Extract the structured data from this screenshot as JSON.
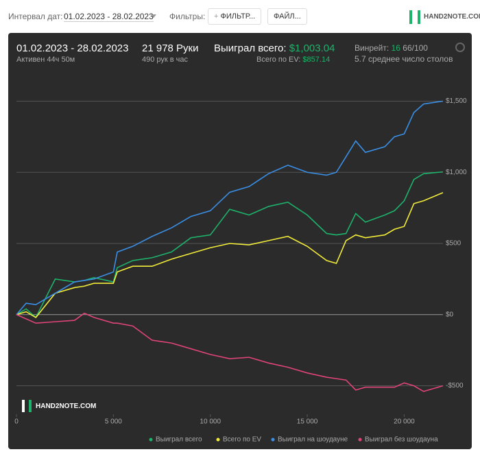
{
  "toolbar": {
    "date_label": "Интервал дат:",
    "date_range": "01.02.2023 - 28.02.2023",
    "filters_label": "Фильтры:",
    "filter_button": "ФИЛЬТР...",
    "file_button": "ФАЙЛ...",
    "logo": "HAND2NOTE.COM"
  },
  "stats": {
    "period": "01.02.2023 - 28.02.2023",
    "active": "Активен 44ч 50м",
    "hands": "21 978 Руки",
    "hands_per_hour": "490 рук в час",
    "won_label": "Выиграл всего:",
    "won_value": "$1,003.04",
    "ev_label": "Всего по EV:",
    "ev_value": "$857.14",
    "winrate_label": "Винрейт:",
    "winrate_value": "16",
    "winrate_unit": "66/100",
    "tables": "5.7 среднее число столов"
  },
  "watermark": "HAND2NOTE.COM",
  "chart_data": {
    "type": "line",
    "x": [
      0,
      500,
      1000,
      2000,
      3000,
      3500,
      4000,
      5000,
      5200,
      6000,
      7000,
      8000,
      9000,
      10000,
      11000,
      12000,
      13000,
      14000,
      15000,
      16000,
      16500,
      17000,
      17500,
      18000,
      19000,
      19500,
      20000,
      20500,
      21000,
      22000
    ],
    "series": [
      {
        "name": "Выиграл всего",
        "color": "#1db36b",
        "values": [
          0,
          40,
          -20,
          250,
          230,
          240,
          260,
          230,
          330,
          380,
          400,
          440,
          540,
          560,
          740,
          700,
          760,
          790,
          700,
          570,
          560,
          570,
          710,
          650,
          700,
          730,
          800,
          950,
          990,
          1003
        ]
      },
      {
        "name": "Всего по EV",
        "color": "#f2ec3a",
        "values": [
          0,
          20,
          -20,
          150,
          190,
          200,
          220,
          220,
          300,
          340,
          340,
          390,
          430,
          470,
          500,
          490,
          520,
          550,
          480,
          380,
          360,
          520,
          560,
          540,
          560,
          600,
          620,
          780,
          800,
          857
        ]
      },
      {
        "name": "Выиграл на шоудауне",
        "color": "#3a8fe6",
        "values": [
          0,
          80,
          70,
          150,
          230,
          240,
          250,
          300,
          440,
          480,
          550,
          610,
          690,
          730,
          860,
          900,
          990,
          1050,
          1000,
          980,
          1000,
          1110,
          1220,
          1140,
          1180,
          1250,
          1270,
          1420,
          1480,
          1500
        ]
      },
      {
        "name": "Выиграл без шоудауна",
        "color": "#e0447a",
        "values": [
          0,
          -30,
          -60,
          -50,
          -40,
          10,
          -20,
          -60,
          -60,
          -80,
          -180,
          -200,
          -240,
          -280,
          -310,
          -300,
          -340,
          -370,
          -410,
          -440,
          -450,
          -460,
          -530,
          -510,
          -510,
          -510,
          -480,
          -500,
          -540,
          -500
        ]
      }
    ],
    "xlim": [
      0,
      22000
    ],
    "xticks": [
      0,
      {
        "value": 5000,
        "label": "5 000"
      },
      {
        "value": 10000,
        "label": "10 000"
      },
      {
        "value": 15000,
        "label": "15 000"
      },
      {
        "value": 20000,
        "label": "20 000"
      }
    ],
    "ylim": [
      -700,
      1700
    ],
    "yticks": [
      {
        "value": -500,
        "label": "-$500"
      },
      {
        "value": 0,
        "label": "$0"
      },
      {
        "value": 500,
        "label": "$500"
      },
      {
        "value": 1000,
        "label": "$1,000"
      },
      {
        "value": 1500,
        "label": "$1,500"
      }
    ],
    "grid": true
  }
}
